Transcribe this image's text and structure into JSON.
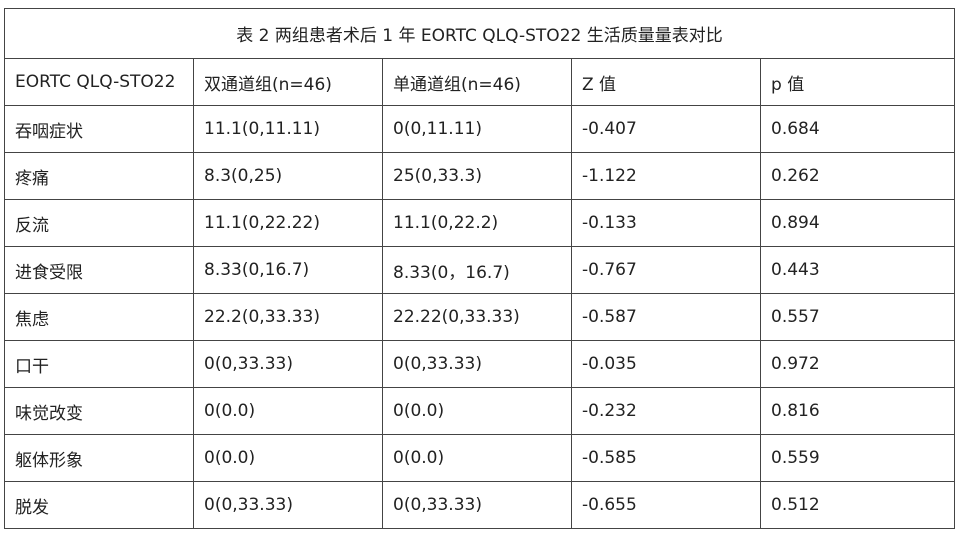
{
  "title": "表 2 两组患者术后 1 年 EORTC QLQ-STO22 生活质量量表对比",
  "table": {
    "header": [
      "EORTC QLQ-STO22",
      "双通道组(n=46)",
      "单通道组(n=46)",
      "Z 值",
      "p 值"
    ],
    "rows": [
      [
        "吞咽症状",
        "11.1(0,11.11)",
        "0(0,11.11)",
        "-0.407",
        "0.684"
      ],
      [
        "疼痛",
        "8.3(0,25)",
        "25(0,33.3)",
        "-1.122",
        "0.262"
      ],
      [
        "反流",
        "11.1(0,22.22)",
        "11.1(0,22.2)",
        "-0.133",
        "0.894"
      ],
      [
        "进食受限",
        "8.33(0,16.7)",
        "8.33(0，16.7)",
        "-0.767",
        "0.443"
      ],
      [
        "焦虑",
        "22.2(0,33.33)",
        "22.22(0,33.33)",
        "-0.587",
        "0.557"
      ],
      [
        "口干",
        "0(0,33.33)",
        "0(0,33.33)",
        "-0.035",
        "0.972"
      ],
      [
        "味觉改变",
        "0(0.0)",
        "0(0.0)",
        "-0.232",
        "0.816"
      ],
      [
        "躯体形象",
        "0(0.0)",
        "0(0.0)",
        "-0.585",
        "0.559"
      ],
      [
        "脱发",
        "0(0,33.33)",
        "0(0,33.33)",
        "-0.655",
        "0.512"
      ]
    ]
  }
}
